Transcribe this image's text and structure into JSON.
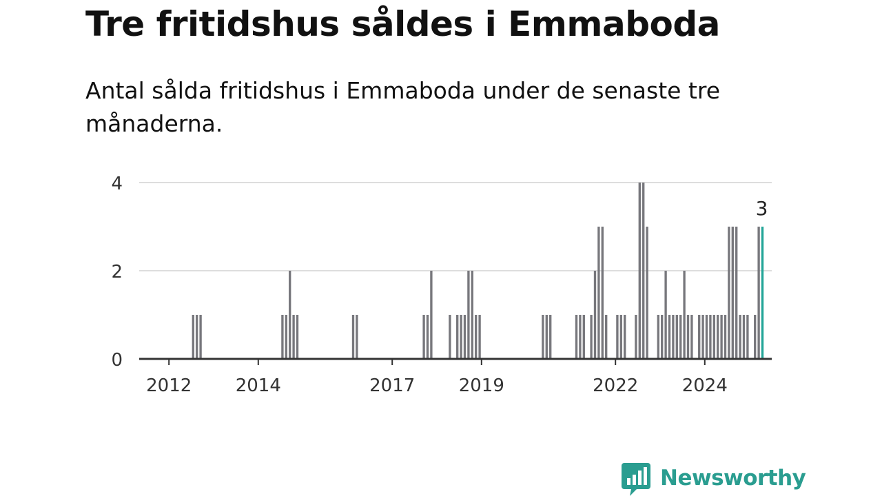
{
  "title": "Tre fritidshus såldes i Emmaboda",
  "subtitle": "Antal sålda fritidshus i Emmaboda under de senaste tre månaderna.",
  "brand": {
    "name": "Newsworthy"
  },
  "colors": {
    "bar": "#77777c",
    "highlight": "#23a598",
    "grid": "#dddddd",
    "axis": "#333333",
    "text": "#333333",
    "brand": "#2a9d90"
  },
  "chart_data": {
    "type": "bar",
    "x_unit": "month",
    "xlim": [
      "2011-05",
      "2025-07"
    ],
    "ylim": [
      0,
      4
    ],
    "y_ticks": [
      0,
      2,
      4
    ],
    "x_ticks": [
      {
        "label": "2012",
        "date": "2012-01"
      },
      {
        "label": "2014",
        "date": "2014-01"
      },
      {
        "label": "2017",
        "date": "2017-01"
      },
      {
        "label": "2019",
        "date": "2019-01"
      },
      {
        "label": "2022",
        "date": "2022-01"
      },
      {
        "label": "2024",
        "date": "2024-01"
      }
    ],
    "grid": true,
    "highlight_label": "3",
    "bars": [
      {
        "date": "2012-07",
        "value": 1
      },
      {
        "date": "2012-08",
        "value": 1
      },
      {
        "date": "2012-09",
        "value": 1
      },
      {
        "date": "2014-07",
        "value": 1
      },
      {
        "date": "2014-08",
        "value": 1
      },
      {
        "date": "2014-09",
        "value": 2
      },
      {
        "date": "2014-10",
        "value": 1
      },
      {
        "date": "2014-11",
        "value": 1
      },
      {
        "date": "2016-02",
        "value": 1
      },
      {
        "date": "2016-03",
        "value": 1
      },
      {
        "date": "2017-09",
        "value": 1
      },
      {
        "date": "2017-10",
        "value": 1
      },
      {
        "date": "2017-11",
        "value": 2
      },
      {
        "date": "2018-04",
        "value": 1
      },
      {
        "date": "2018-06",
        "value": 1
      },
      {
        "date": "2018-07",
        "value": 1
      },
      {
        "date": "2018-08",
        "value": 1
      },
      {
        "date": "2018-09",
        "value": 2
      },
      {
        "date": "2018-10",
        "value": 2
      },
      {
        "date": "2018-11",
        "value": 1
      },
      {
        "date": "2018-12",
        "value": 1
      },
      {
        "date": "2020-05",
        "value": 1
      },
      {
        "date": "2020-06",
        "value": 1
      },
      {
        "date": "2020-07",
        "value": 1
      },
      {
        "date": "2021-02",
        "value": 1
      },
      {
        "date": "2021-03",
        "value": 1
      },
      {
        "date": "2021-04",
        "value": 1
      },
      {
        "date": "2021-06",
        "value": 1
      },
      {
        "date": "2021-07",
        "value": 2
      },
      {
        "date": "2021-08",
        "value": 3
      },
      {
        "date": "2021-09",
        "value": 3
      },
      {
        "date": "2021-10",
        "value": 1
      },
      {
        "date": "2022-01",
        "value": 1
      },
      {
        "date": "2022-02",
        "value": 1
      },
      {
        "date": "2022-03",
        "value": 1
      },
      {
        "date": "2022-06",
        "value": 1
      },
      {
        "date": "2022-07",
        "value": 4
      },
      {
        "date": "2022-08",
        "value": 4
      },
      {
        "date": "2022-09",
        "value": 3
      },
      {
        "date": "2022-12",
        "value": 1
      },
      {
        "date": "2023-01",
        "value": 1
      },
      {
        "date": "2023-02",
        "value": 2
      },
      {
        "date": "2023-03",
        "value": 1
      },
      {
        "date": "2023-04",
        "value": 1
      },
      {
        "date": "2023-05",
        "value": 1
      },
      {
        "date": "2023-06",
        "value": 1
      },
      {
        "date": "2023-07",
        "value": 2
      },
      {
        "date": "2023-08",
        "value": 1
      },
      {
        "date": "2023-09",
        "value": 1
      },
      {
        "date": "2023-11",
        "value": 1
      },
      {
        "date": "2023-12",
        "value": 1
      },
      {
        "date": "2024-01",
        "value": 1
      },
      {
        "date": "2024-02",
        "value": 1
      },
      {
        "date": "2024-03",
        "value": 1
      },
      {
        "date": "2024-04",
        "value": 1
      },
      {
        "date": "2024-05",
        "value": 1
      },
      {
        "date": "2024-06",
        "value": 1
      },
      {
        "date": "2024-07",
        "value": 3
      },
      {
        "date": "2024-08",
        "value": 3
      },
      {
        "date": "2024-09",
        "value": 3
      },
      {
        "date": "2024-10",
        "value": 1
      },
      {
        "date": "2024-11",
        "value": 1
      },
      {
        "date": "2024-12",
        "value": 1
      },
      {
        "date": "2025-02",
        "value": 1
      },
      {
        "date": "2025-03",
        "value": 3
      },
      {
        "date": "2025-04",
        "value": 3,
        "highlight": true
      }
    ]
  }
}
